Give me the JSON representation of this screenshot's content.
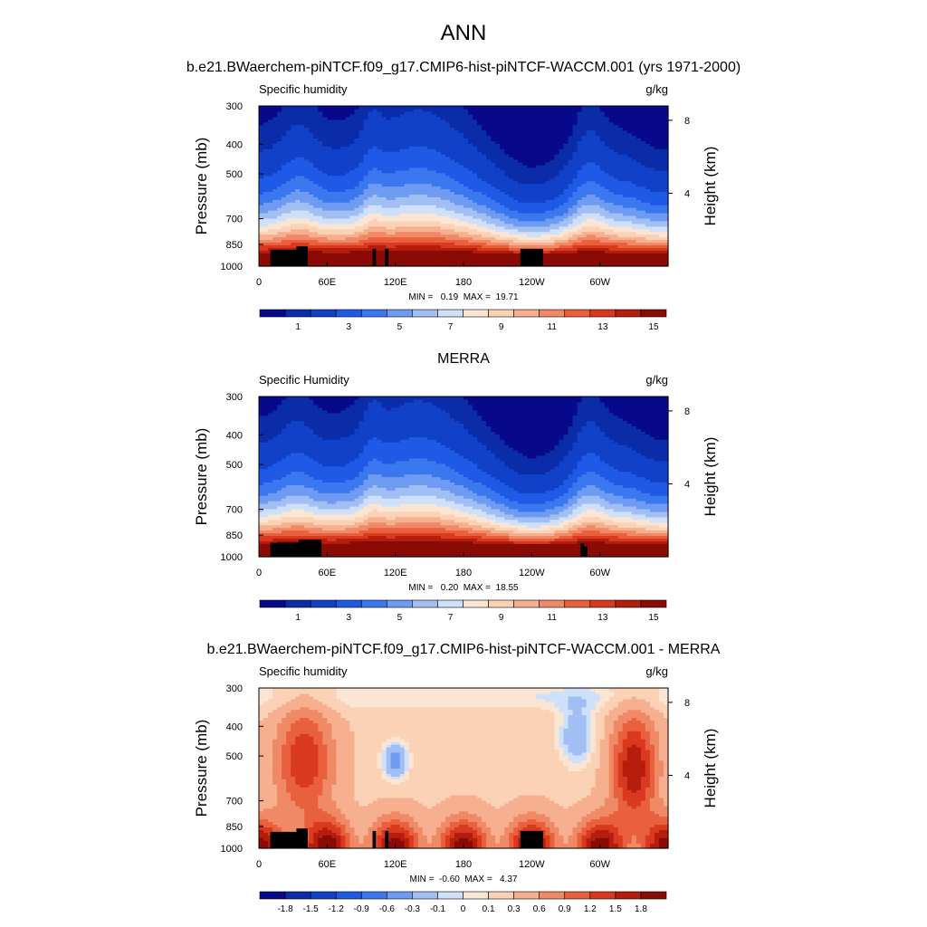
{
  "figure": {
    "title": "ANN",
    "run_title": "b.e21.BWaerchem-piNTCF.f09_g17.CMIP6-hist-piNTCF-WACCM.001 (yrs 1971-2000)",
    "obs_title": "MERRA",
    "diff_title": "b.e21.BWaerchem-piNTCF.f09_g17.CMIP6-hist-piNTCF-WACCM.001 - MERRA"
  },
  "colors": {
    "full_palette": [
      "#08088a",
      "#0a2ca8",
      "#1041c8",
      "#1f5ae6",
      "#3b78ef",
      "#6f9bf2",
      "#a2bff4",
      "#cfe0fa",
      "#fbe6d4",
      "#fbd2b6",
      "#f6b090",
      "#f08a66",
      "#e8603e",
      "#d93a1f",
      "#b51d0c",
      "#8a0a06"
    ],
    "diff_palette": [
      "#08088a",
      "#0a2ca8",
      "#1041c8",
      "#1f5ae6",
      "#3b78ef",
      "#6f9bf2",
      "#a2bff4",
      "#cfe0fa",
      "#fbe6d4",
      "#fbd2b6",
      "#f6b090",
      "#f08a66",
      "#e8603e",
      "#d93a1f",
      "#b51d0c",
      "#8a0a06"
    ],
    "topography": "#000000"
  },
  "chart_data": [
    {
      "type": "heatmap",
      "panel": "model",
      "left_label": "Specific humidity",
      "right_label": "g/kg",
      "ylabel": "Pressure (mb)",
      "y2label": "Height (km)",
      "x_ticks": [
        "0",
        "60E",
        "120E",
        "180",
        "120W",
        "60W"
      ],
      "x_tick_lon": [
        0,
        60,
        120,
        180,
        240,
        300
      ],
      "xlim": [
        0,
        360
      ],
      "y_ticks": [
        "300",
        "400",
        "500",
        "700",
        "850",
        "1000"
      ],
      "y_tick_p": [
        300,
        400,
        500,
        700,
        850,
        1000
      ],
      "ylim": [
        1000,
        300
      ],
      "y2_ticks": [
        "8",
        "4"
      ],
      "y2_tick_km": [
        8,
        4
      ],
      "min_max": "MIN =   0.19  MAX =  19.71",
      "colorbar_labels": [
        "1",
        "3",
        "5",
        "7",
        "9",
        "11",
        "13",
        "15"
      ],
      "colorbar_positions": [
        1,
        3,
        5,
        7,
        9,
        11,
        13,
        15
      ],
      "levels": [
        0.5,
        1,
        2,
        3,
        4,
        5,
        6,
        7,
        8,
        9,
        10,
        11,
        12,
        13,
        14,
        15
      ],
      "stats": {
        "min": 0.19,
        "max": 19.71
      }
    },
    {
      "type": "heatmap",
      "panel": "obs",
      "left_label": "Specific Humidity",
      "right_label": "g/kg",
      "ylabel": "Pressure (mb)",
      "y2label": "Height (km)",
      "x_ticks": [
        "0",
        "60E",
        "120E",
        "180",
        "120W",
        "60W"
      ],
      "x_tick_lon": [
        0,
        60,
        120,
        180,
        240,
        300
      ],
      "xlim": [
        0,
        360
      ],
      "y_ticks": [
        "300",
        "400",
        "500",
        "700",
        "850",
        "1000"
      ],
      "y_tick_p": [
        300,
        400,
        500,
        700,
        850,
        1000
      ],
      "ylim": [
        1000,
        300
      ],
      "y2_ticks": [
        "8",
        "4"
      ],
      "y2_tick_km": [
        8,
        4
      ],
      "min_max": "MIN =   0.20  MAX =  18.55",
      "colorbar_labels": [
        "1",
        "3",
        "5",
        "7",
        "9",
        "11",
        "13",
        "15"
      ],
      "colorbar_positions": [
        1,
        3,
        5,
        7,
        9,
        11,
        13,
        15
      ],
      "levels": [
        0.5,
        1,
        2,
        3,
        4,
        5,
        6,
        7,
        8,
        9,
        10,
        11,
        12,
        13,
        14,
        15
      ],
      "stats": {
        "min": 0.2,
        "max": 18.55
      }
    },
    {
      "type": "heatmap",
      "panel": "diff",
      "left_label": "Specific humidity",
      "right_label": "g/kg",
      "ylabel": "Pressure (mb)",
      "y2label": "Height (km)",
      "x_ticks": [
        "0",
        "60E",
        "120E",
        "180",
        "120W",
        "60W"
      ],
      "x_tick_lon": [
        0,
        60,
        120,
        180,
        240,
        300
      ],
      "xlim": [
        0,
        360
      ],
      "y_ticks": [
        "300",
        "400",
        "500",
        "700",
        "850",
        "1000"
      ],
      "y_tick_p": [
        300,
        400,
        500,
        700,
        850,
        1000
      ],
      "ylim": [
        1000,
        300
      ],
      "y2_ticks": [
        "8",
        "4"
      ],
      "y2_tick_km": [
        8,
        4
      ],
      "min_max": "MIN =  -0.60  MAX =   4.37",
      "colorbar_labels": [
        "-1.8",
        "-1.5",
        "-1.2",
        "-0.9",
        "-0.6",
        "-0.3",
        "-0.1",
        "0",
        "0.1",
        "0.3",
        "0.6",
        "0.9",
        "1.2",
        "1.5",
        "1.8"
      ],
      "levels": [
        -1.8,
        -1.5,
        -1.2,
        -0.9,
        -0.6,
        -0.3,
        -0.1,
        0,
        0.1,
        0.3,
        0.6,
        0.9,
        1.2,
        1.5,
        1.8
      ],
      "stats": {
        "min": -0.6,
        "max": 4.37
      }
    }
  ]
}
